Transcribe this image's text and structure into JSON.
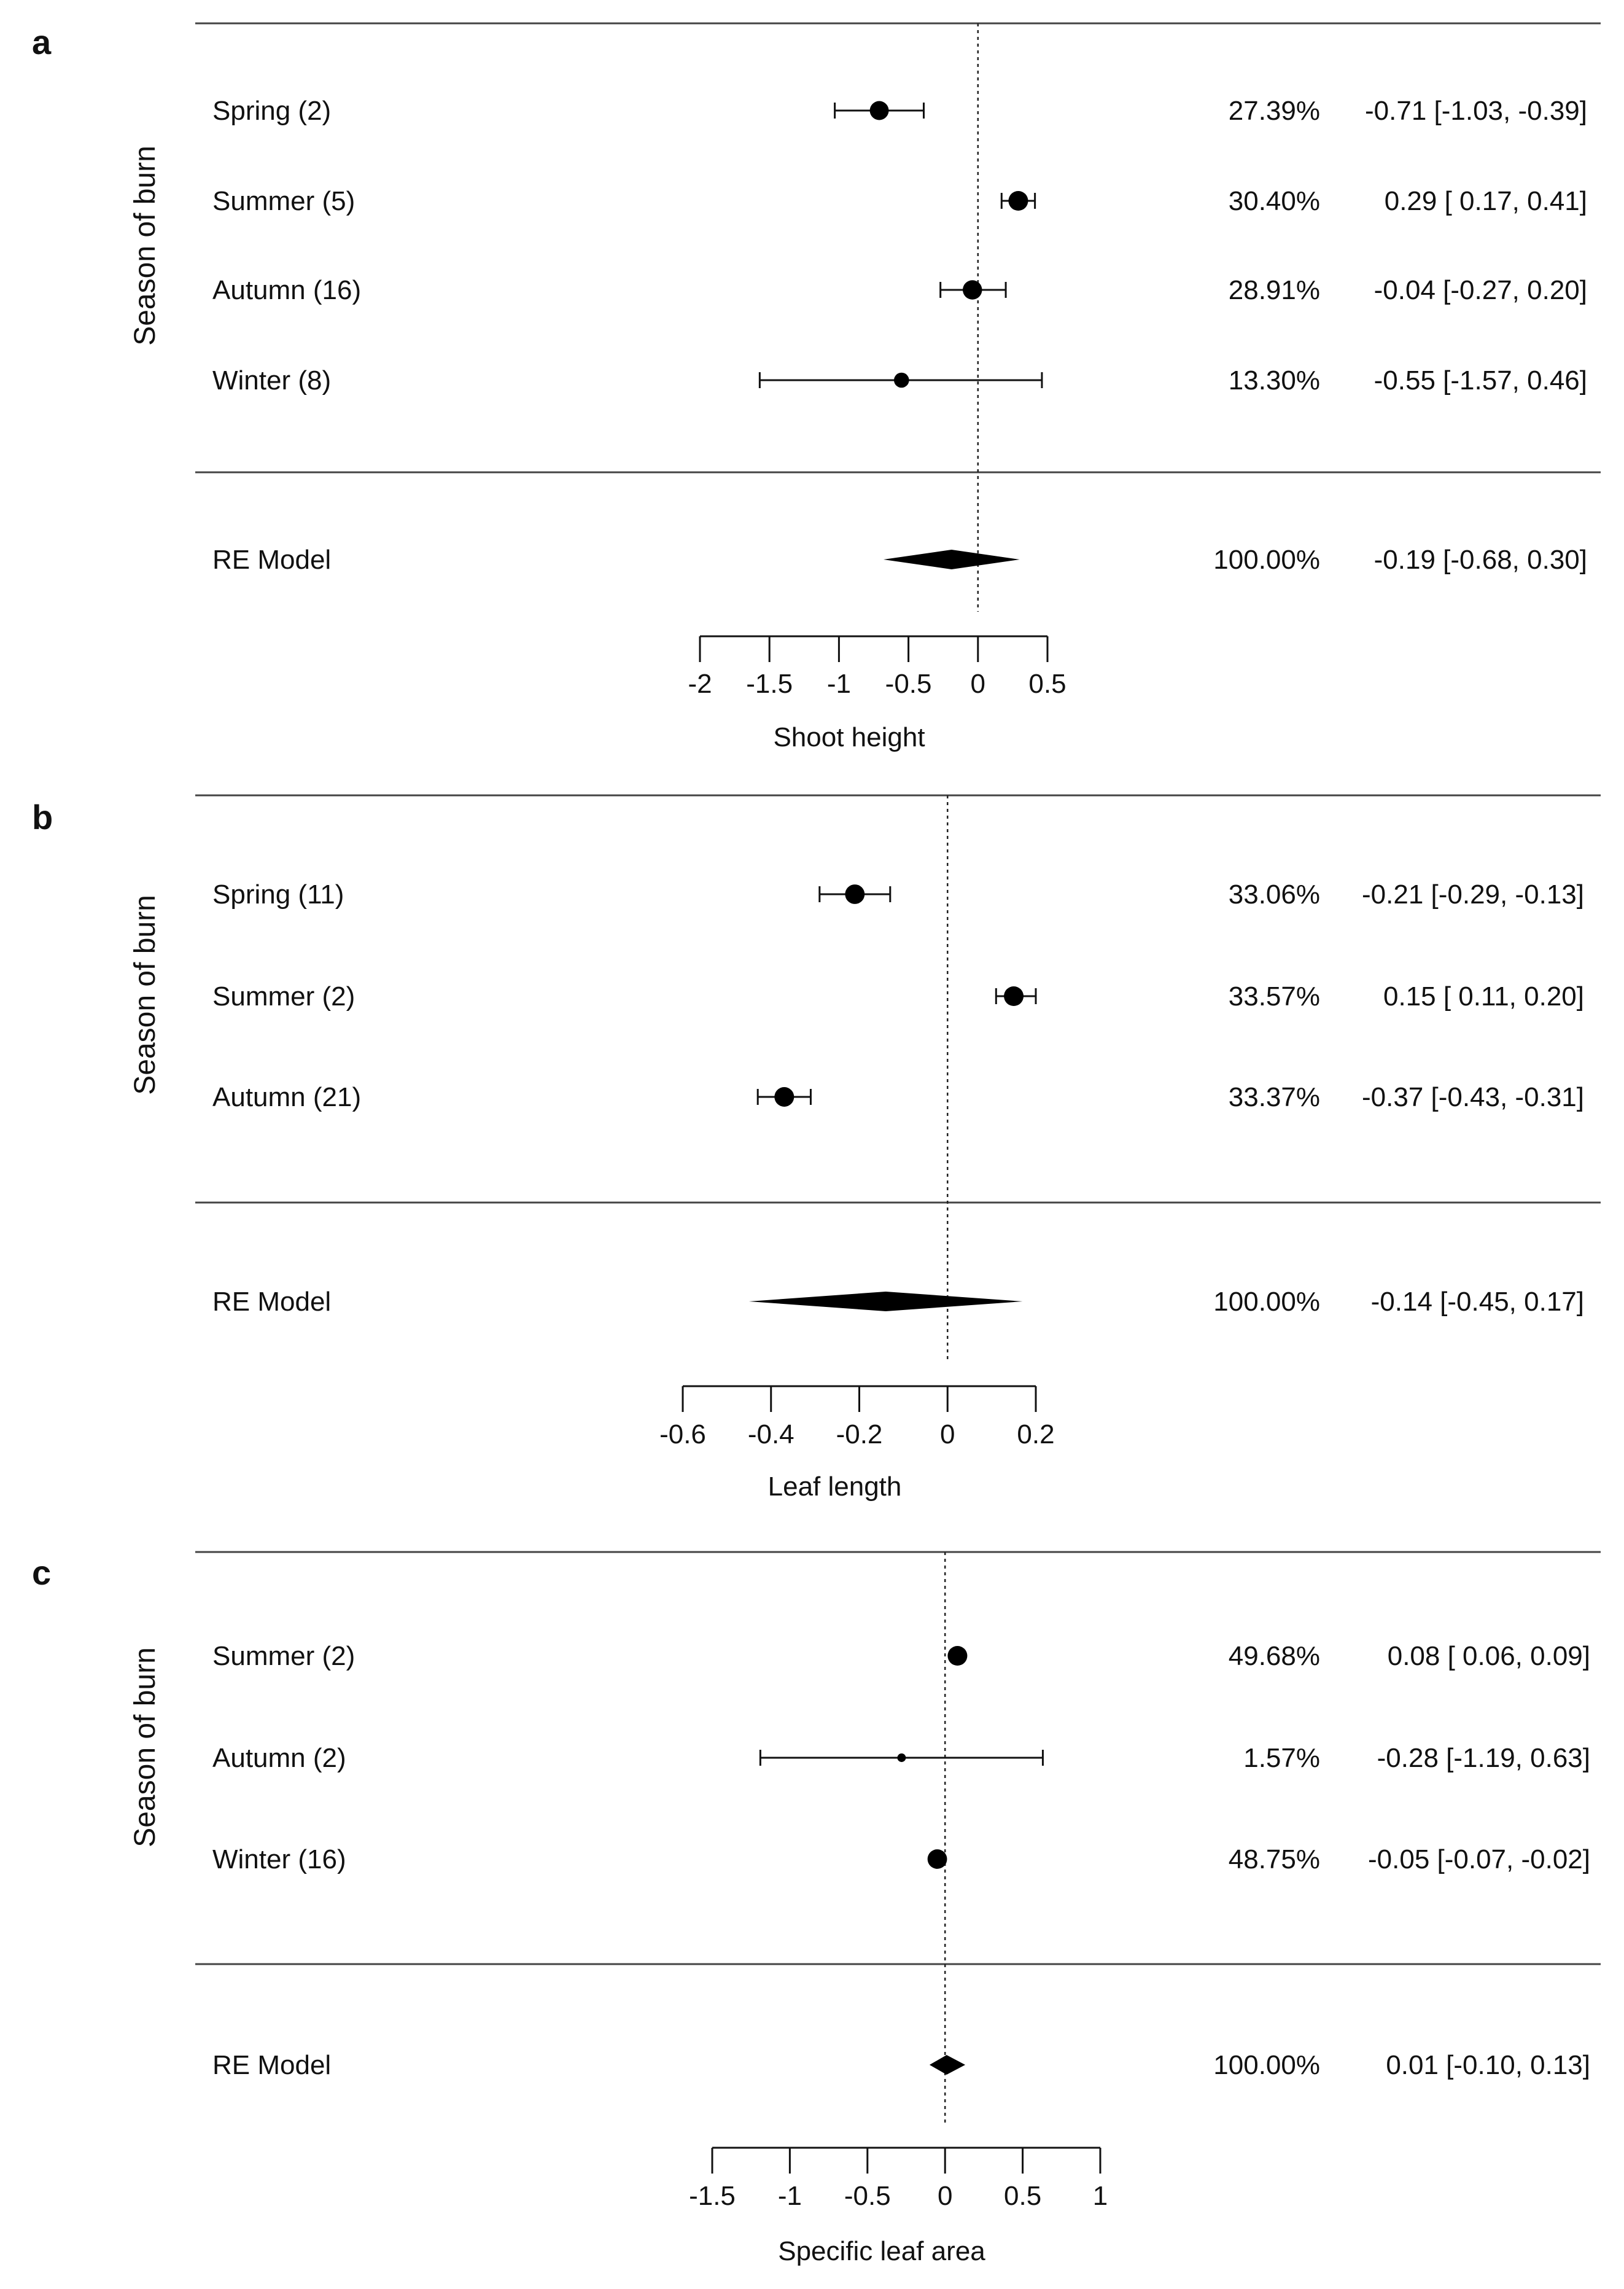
{
  "chart_data": [
    {
      "type": "forest",
      "panel_label": "a",
      "ylabel": "Season of burn",
      "xlabel": "Shoot height",
      "xlim": [
        -2,
        0.5
      ],
      "xticks": [
        "-2",
        "-1.5",
        "-1",
        "-0.5",
        "0",
        "0.5"
      ],
      "tick_values": [
        -2,
        -1.5,
        -1,
        -0.5,
        0,
        0.5
      ],
      "reference_line": 0,
      "studies": [
        {
          "label": "Spring (2)",
          "estimate": -0.71,
          "ci_low": -1.03,
          "ci_high": -0.39,
          "weight": "27.39%",
          "weight_value": 27.39,
          "text": "-0.71 [-1.03, -0.39]"
        },
        {
          "label": "Summer (5)",
          "estimate": 0.29,
          "ci_low": 0.17,
          "ci_high": 0.41,
          "weight": "30.40%",
          "weight_value": 30.4,
          "text": "0.29 [ 0.17,  0.41]"
        },
        {
          "label": "Autumn (16)",
          "estimate": -0.04,
          "ci_low": -0.27,
          "ci_high": 0.2,
          "weight": "28.91%",
          "weight_value": 28.91,
          "text": "-0.04 [-0.27,  0.20]"
        },
        {
          "label": "Winter (8)",
          "estimate": -0.55,
          "ci_low": -1.57,
          "ci_high": 0.46,
          "weight": "13.30%",
          "weight_value": 13.3,
          "text": "-0.55 [-1.57,  0.46]"
        }
      ],
      "summary": {
        "label": "RE Model",
        "estimate": -0.19,
        "ci_low": -0.68,
        "ci_high": 0.3,
        "weight": "100.00%",
        "text": "-0.19 [-0.68,  0.30]"
      }
    },
    {
      "type": "forest",
      "panel_label": "b",
      "ylabel": "Season of burn",
      "xlabel": "Leaf length",
      "xlim": [
        -0.6,
        0.2
      ],
      "xticks": [
        "-0.6",
        "-0.4",
        "-0.2",
        "0",
        "0.2"
      ],
      "tick_values": [
        -0.6,
        -0.4,
        -0.2,
        0,
        0.2
      ],
      "reference_line": 0,
      "studies": [
        {
          "label": "Spring (11)",
          "estimate": -0.21,
          "ci_low": -0.29,
          "ci_high": -0.13,
          "weight": "33.06%",
          "weight_value": 33.06,
          "text": "-0.21 [-0.29, -0.13]"
        },
        {
          "label": "Summer (2)",
          "estimate": 0.15,
          "ci_low": 0.11,
          "ci_high": 0.2,
          "weight": "33.57%",
          "weight_value": 33.57,
          "text": "0.15 [ 0.11,  0.20]"
        },
        {
          "label": "Autumn (21)",
          "estimate": -0.37,
          "ci_low": -0.43,
          "ci_high": -0.31,
          "weight": "33.37%",
          "weight_value": 33.37,
          "text": "-0.37 [-0.43, -0.31]"
        }
      ],
      "summary": {
        "label": "RE Model",
        "estimate": -0.14,
        "ci_low": -0.45,
        "ci_high": 0.17,
        "weight": "100.00%",
        "text": "-0.14 [-0.45,  0.17]"
      }
    },
    {
      "type": "forest",
      "panel_label": "c",
      "ylabel": "Season of burn",
      "xlabel": "Specific leaf area",
      "xlim": [
        -1.5,
        1
      ],
      "xticks": [
        "-1.5",
        "-1",
        "-0.5",
        "0",
        "0.5",
        "1"
      ],
      "tick_values": [
        -1.5,
        -1,
        -0.5,
        0,
        0.5,
        1
      ],
      "reference_line": 0,
      "studies": [
        {
          "label": "Summer (2)",
          "estimate": 0.08,
          "ci_low": 0.06,
          "ci_high": 0.09,
          "weight": "49.68%",
          "weight_value": 49.68,
          "text": "0.08 [ 0.06,  0.09]"
        },
        {
          "label": "Autumn (2)",
          "estimate": -0.28,
          "ci_low": -1.19,
          "ci_high": 0.63,
          "weight": "1.57%",
          "weight_value": 1.57,
          "text": "-0.28 [-1.19,  0.63]"
        },
        {
          "label": "Winter (16)",
          "estimate": -0.05,
          "ci_low": -0.07,
          "ci_high": -0.02,
          "weight": "48.75%",
          "weight_value": 48.75,
          "text": "-0.05 [-0.07, -0.02]"
        }
      ],
      "summary": {
        "label": "RE Model",
        "estimate": 0.01,
        "ci_low": -0.1,
        "ci_high": 0.13,
        "weight": "100.00%",
        "text": "0.01 [-0.10,  0.13]"
      }
    }
  ]
}
